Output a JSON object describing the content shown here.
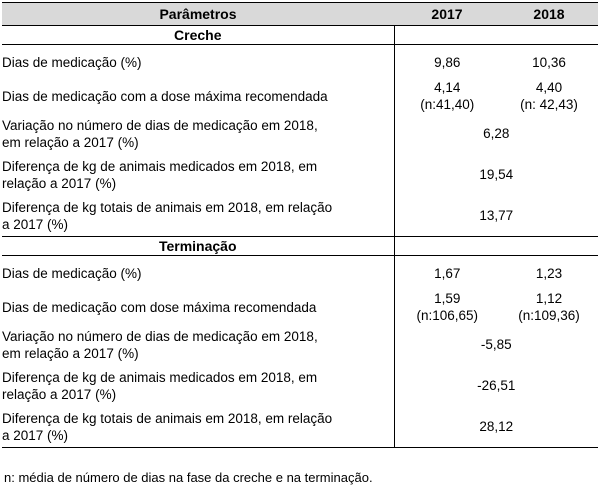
{
  "table": {
    "headers": [
      "Parâmetros",
      "2017",
      "2018"
    ],
    "sections": [
      {
        "title": "Creche",
        "rows": [
          {
            "label": "Dias de medicação (%)",
            "v2017": "9,86",
            "v2018": "10,36"
          },
          {
            "label": "Dias de medicação com a dose máxima recomendada",
            "v2017": [
              "4,14",
              "(n:41,40)"
            ],
            "v2018": [
              "4,40",
              "(n: 42,43)"
            ]
          },
          {
            "label": [
              "Variação no número de dias de medicação em 2018,",
              "em relação a 2017 (%)"
            ],
            "merged": "6,28"
          },
          {
            "label": [
              "Diferença de kg de animais medicados em 2018, em",
              "relação a 2017 (%)"
            ],
            "merged": "19,54"
          },
          {
            "label": [
              "Diferença de kg totais de animais em 2018, em relação",
              "a 2017 (%)"
            ],
            "merged": "13,77"
          }
        ]
      },
      {
        "title": "Terminação",
        "rows": [
          {
            "label": "Dias de medicação (%)",
            "v2017": "1,67",
            "v2018": "1,23"
          },
          {
            "label": "Dias de medicação com dose máxima recomendada",
            "v2017": [
              "1,59",
              "(n:106,65)"
            ],
            "v2018": [
              "1,12",
              "(n:109,36)"
            ]
          },
          {
            "label": [
              "Variação no número de dias de medicação em 2018,",
              "em relação a 2017 (%)"
            ],
            "merged": "-5,85"
          },
          {
            "label": [
              "Diferença de kg de animais medicados em 2018, em",
              "relação a 2017 (%)"
            ],
            "merged": "-26,51"
          },
          {
            "label": [
              "Diferença de kg totais de animais em 2018, em relação",
              "a 2017 (%)"
            ],
            "merged": "28,12"
          }
        ]
      }
    ]
  },
  "footnote": "n: média de número de dias na fase da creche e na terminação."
}
